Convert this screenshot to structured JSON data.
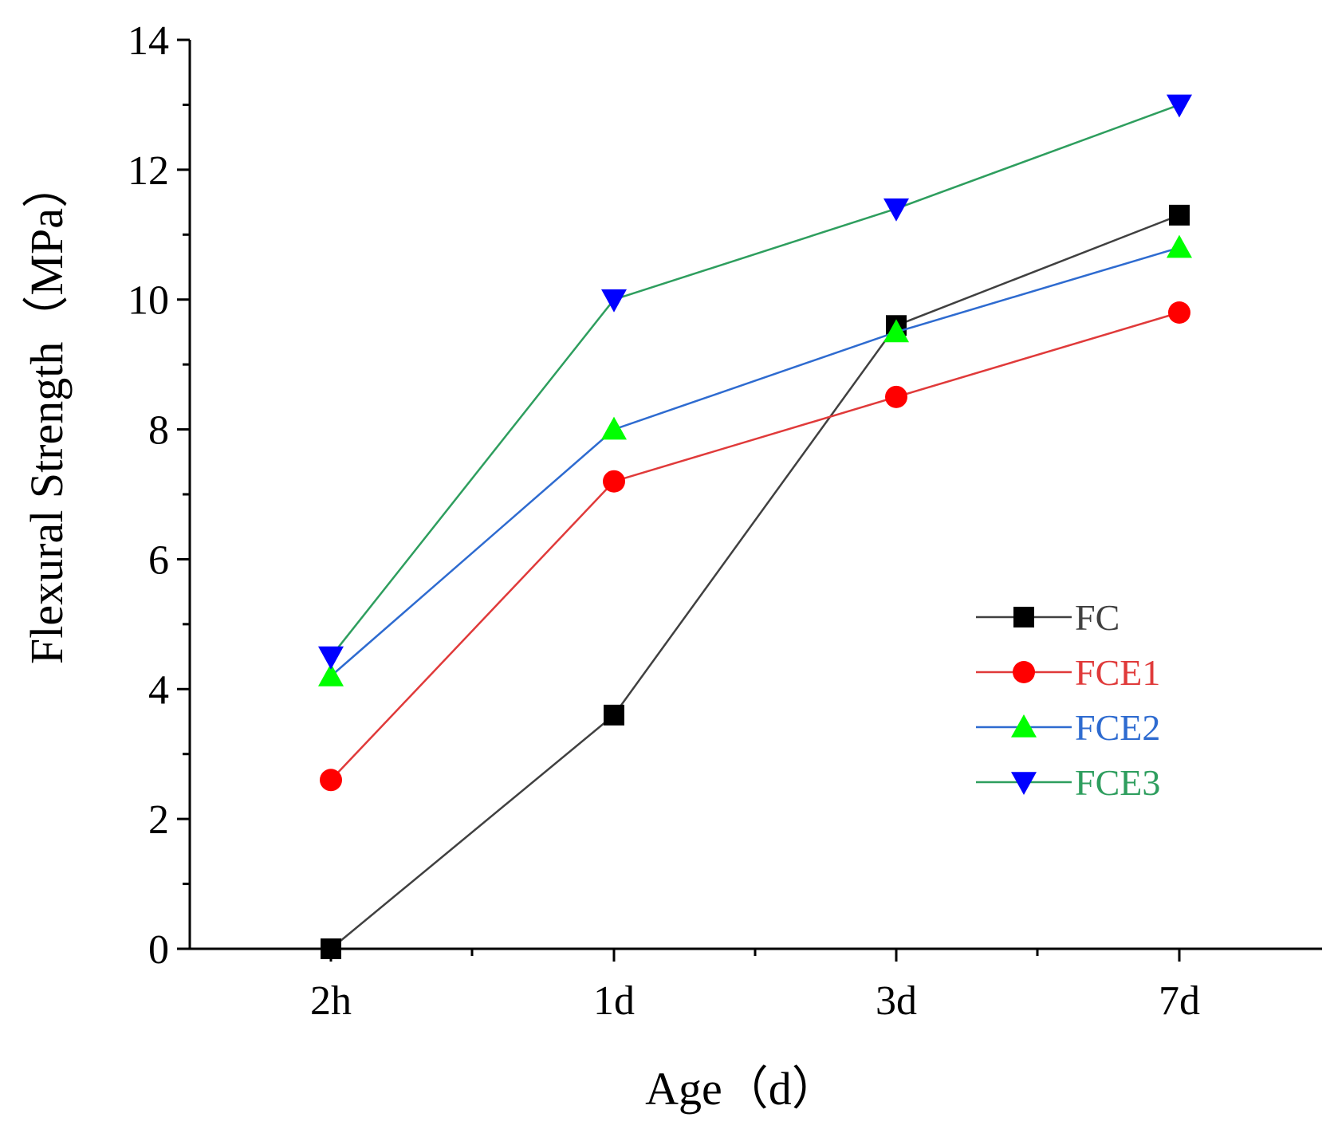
{
  "chart_data": {
    "type": "line",
    "title": "",
    "xlabel": "Age（d）",
    "ylabel": "Flexural Strength（MPa）",
    "categories": [
      "2h",
      "1d",
      "3d",
      "7d"
    ],
    "ylim": [
      0,
      14
    ],
    "yticks": [
      "0",
      "2",
      "4",
      "6",
      "8",
      "10",
      "12",
      "14"
    ],
    "grid": false,
    "legend_position": "center-right",
    "series": [
      {
        "name": "FC",
        "values": [
          0.0,
          3.6,
          9.6,
          11.3
        ],
        "color": "#404040",
        "marker": "square",
        "marker_color": "#000000"
      },
      {
        "name": "FCE1",
        "values": [
          2.6,
          7.2,
          8.5,
          9.8
        ],
        "color": "#e03a3a",
        "marker": "circle",
        "marker_color": "#ff0000"
      },
      {
        "name": "FCE2",
        "values": [
          4.2,
          8.0,
          9.5,
          10.8
        ],
        "color": "#2e6bd0",
        "marker": "triangle-up",
        "marker_color": "#00ff00"
      },
      {
        "name": "FCE3",
        "values": [
          4.5,
          10.0,
          11.4,
          13.0
        ],
        "color": "#2e9e5e",
        "marker": "triangle-down",
        "marker_color": "#0000ff"
      }
    ]
  }
}
